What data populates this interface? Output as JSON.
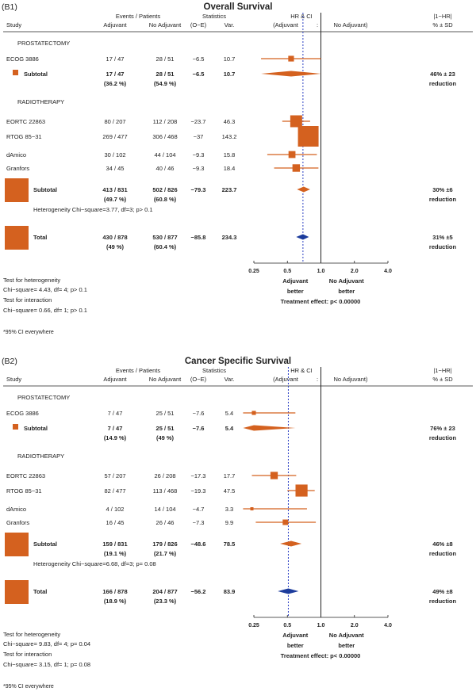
{
  "colors": {
    "marker": "#d4611f",
    "total_diamond": "#1c3c9c",
    "ref_line_dotted": "#2a3fc4",
    "ink": "#222222"
  },
  "columns": {
    "study": "Study",
    "events_patients": "Events / Patients",
    "adjuvant": "Adjuvant",
    "no_adjuvant": "No Adjuvant",
    "statistics": "Statistics",
    "o_e": "(O−E)",
    "var": "Var.",
    "hr_ci": "HR & CI",
    "hr_dir_left": "(Adjuvant",
    "hr_dir_sep": ":",
    "hr_dir_right": "No Adjuvant)",
    "reduction_head": "|1−HR|",
    "reduction_sub": "% ±  SD"
  },
  "chart_data": [
    {
      "type": "forest",
      "panel_label": "(B1)",
      "title": "Overall Survival",
      "x_scale": "log",
      "xlim": [
        0.25,
        4.0
      ],
      "ticks": [
        "0.25",
        "0.5",
        "1.0",
        "2.0",
        "4.0"
      ],
      "tick_values": [
        0.25,
        0.5,
        1.0,
        2.0,
        4.0
      ],
      "overall_hr": 0.69,
      "groups": [
        {
          "name": "PROSTATECTOMY",
          "studies": [
            {
              "name": "ECOG 3886",
              "adjuvant": "17 / 47",
              "no_adjuvant": "28 / 51",
              "o_e": "−6.5",
              "var": "10.7",
              "hr": 0.54,
              "lo": 0.29,
              "hi": 1.0,
              "weight": 10.7
            }
          ],
          "subtotal": {
            "label": "Subtotal",
            "adjuvant": "17 / 47",
            "no_adjuvant": "28 / 51",
            "adjuvant_pct": "(36.2 %)",
            "no_adjuvant_pct": "(54.9 %)",
            "o_e": "−6.5",
            "var": "10.7",
            "hr": 0.54,
            "lo": 0.29,
            "hi": 1.0,
            "reduction": "46% ± 23",
            "reduction_word": "reduction"
          }
        },
        {
          "name": "RADIOTHERAPY",
          "studies": [
            {
              "name": "EORTC 22863",
              "adjuvant": "80 / 207",
              "no_adjuvant": "112 / 208",
              "o_e": "−23.7",
              "var": "46.3",
              "hr": 0.6,
              "lo": 0.45,
              "hi": 0.8,
              "weight": 46.3
            },
            {
              "name": "RTOG 85−31",
              "adjuvant": "269 / 477",
              "no_adjuvant": "306 / 468",
              "o_e": "−37",
              "var": "143.2",
              "hr": 0.77,
              "lo": 0.65,
              "hi": 0.92,
              "weight": 143.2
            },
            {
              "name": "dAmico",
              "adjuvant": "30 / 102",
              "no_adjuvant": "44 / 104",
              "o_e": "−9.3",
              "var": "15.8",
              "hr": 0.55,
              "lo": 0.33,
              "hi": 0.92,
              "weight": 15.8
            },
            {
              "name": "Granfors",
              "adjuvant": "34 / 45",
              "no_adjuvant": "40 / 46",
              "o_e": "−9.3",
              "var": "18.4",
              "hr": 0.6,
              "lo": 0.38,
              "hi": 0.95,
              "weight": 18.4
            }
          ],
          "subtotal": {
            "label": "Subtotal",
            "adjuvant": "413 / 831",
            "no_adjuvant": "502 / 826",
            "adjuvant_pct": "(49.7 %)",
            "no_adjuvant_pct": "(60.8 %)",
            "o_e": "−79.3",
            "var": "223.7",
            "hr": 0.7,
            "lo": 0.61,
            "hi": 0.8,
            "reduction": "30% ±6",
            "reduction_word": "reduction"
          },
          "heterogeneity": "Heterogeneity Chi−square=3.77, df=3; p> 0.1"
        }
      ],
      "total": {
        "label": "Total",
        "adjuvant": "430 / 878",
        "no_adjuvant": "530 / 877",
        "adjuvant_pct": "(49 %)",
        "no_adjuvant_pct": "(60.4 %)",
        "o_e": "−85.8",
        "var": "234.3",
        "hr": 0.69,
        "lo": 0.6,
        "hi": 0.78,
        "reduction": "31% ±5",
        "reduction_word": "reduction"
      },
      "axis_left": "Adjuvant",
      "axis_right": "No Adjuvant",
      "axis_left_sub": "better",
      "axis_right_sub": "better",
      "treatment_effect": "Treatment effect: p< 0.00000",
      "notes": [
        "Test for heterogeneity",
        "Chi−square= 4.43, df= 4; p> 0.1",
        "Test for interaction",
        "Chi−square= 0.66, df= 1; p> 0.1"
      ],
      "footnote": "*95% CI everywhere"
    },
    {
      "type": "forest",
      "panel_label": "(B2)",
      "title": "Cancer Specific Survival",
      "x_scale": "log",
      "xlim": [
        0.25,
        4.0
      ],
      "ticks": [
        "0.25",
        "0.5",
        "1.0",
        "2.0",
        "4.0"
      ],
      "tick_values": [
        0.25,
        0.5,
        1.0,
        2.0,
        4.0
      ],
      "overall_hr": 0.51,
      "groups": [
        {
          "name": "PROSTATECTOMY",
          "studies": [
            {
              "name": "ECOG 3886",
              "adjuvant": "7 / 47",
              "no_adjuvant": "25 / 51",
              "o_e": "−7.6",
              "var": "5.4",
              "hr": 0.25,
              "lo": 0.11,
              "hi": 0.59,
              "weight": 5.4
            }
          ],
          "subtotal": {
            "label": "Subtotal",
            "adjuvant": "7 / 47",
            "no_adjuvant": "25 / 51",
            "adjuvant_pct": "(14.9 %)",
            "no_adjuvant_pct": "(49 %)",
            "o_e": "−7.6",
            "var": "5.4",
            "hr": 0.25,
            "lo": 0.11,
            "hi": 0.59,
            "reduction": "76% ± 23",
            "reduction_word": "reduction"
          }
        },
        {
          "name": "RADIOTHERAPY",
          "studies": [
            {
              "name": "EORTC 22863",
              "adjuvant": "57 / 207",
              "no_adjuvant": "26 / 208",
              "o_e": "−17.3",
              "var": "17.7",
              "hr": 0.38,
              "lo": 0.24,
              "hi": 0.6,
              "weight": 17.7
            },
            {
              "name": "RTOG 85−31",
              "adjuvant": "82 / 477",
              "no_adjuvant": "113 / 468",
              "o_e": "−19.3",
              "var": "47.5",
              "hr": 0.67,
              "lo": 0.5,
              "hi": 0.88,
              "weight": 47.5
            },
            {
              "name": "dAmico",
              "adjuvant": "4 / 102",
              "no_adjuvant": "14 / 104",
              "o_e": "−4.7",
              "var": "3.3",
              "hr": 0.24,
              "lo": 0.08,
              "hi": 0.75,
              "weight": 3.3
            },
            {
              "name": "Granfors",
              "adjuvant": "16 / 45",
              "no_adjuvant": "26 / 46",
              "o_e": "−7.3",
              "var": "9.9",
              "hr": 0.48,
              "lo": 0.26,
              "hi": 0.9,
              "weight": 9.9
            }
          ],
          "subtotal": {
            "label": "Subtotal",
            "adjuvant": "159 / 831",
            "no_adjuvant": "179 / 826",
            "adjuvant_pct": "(19.1 %)",
            "no_adjuvant_pct": "(21.7 %)",
            "o_e": "−48.6",
            "var": "78.5",
            "hr": 0.54,
            "lo": 0.43,
            "hi": 0.67,
            "reduction": "46% ±8",
            "reduction_word": "reduction"
          },
          "heterogeneity": "Heterogeneity Chi−square=6.68, df=3; p= 0.08"
        }
      ],
      "total": {
        "label": "Total",
        "adjuvant": "166 / 878",
        "no_adjuvant": "204 / 877",
        "adjuvant_pct": "(18.9 %)",
        "no_adjuvant_pct": "(23.3 %)",
        "o_e": "−56.2",
        "var": "83.9",
        "hr": 0.51,
        "lo": 0.41,
        "hi": 0.63,
        "reduction": "49% ±8",
        "reduction_word": "reduction"
      },
      "axis_left": "Adjuvant",
      "axis_right": "No Adjuvant",
      "axis_left_sub": "better",
      "axis_right_sub": "better",
      "treatment_effect": "Treatment effect: p< 0.00000",
      "notes": [
        "Test for heterogeneity",
        "Chi−square= 9.83, df= 4; p= 0.04",
        "Test for interaction",
        "Chi−square= 3.15, df= 1; p= 0.08"
      ],
      "footnote": "*95% CI everywhere"
    }
  ]
}
